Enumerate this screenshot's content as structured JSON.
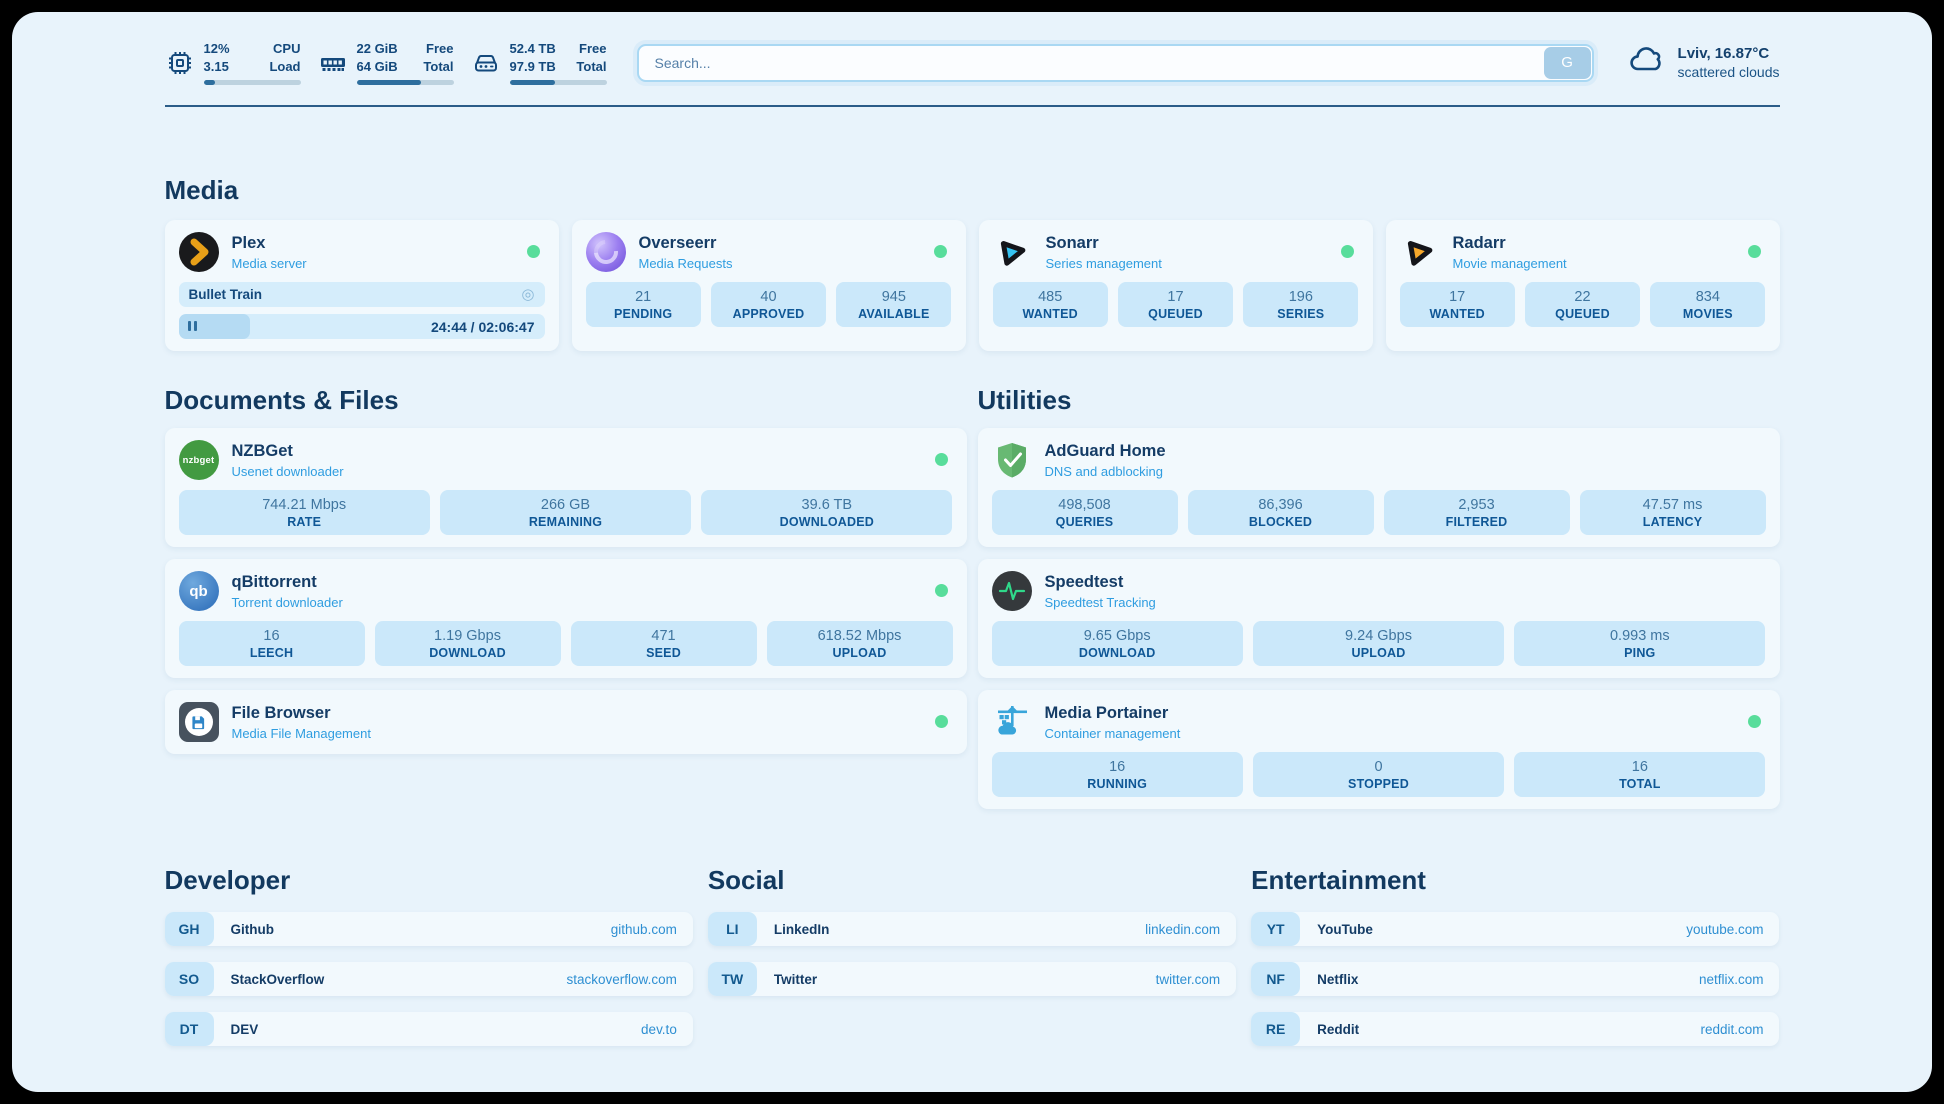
{
  "theme": {
    "accent": "#14497c",
    "online_dot": "#58dd9b",
    "link": "#2e8fd2",
    "card_bg": "#f2f9fd",
    "stat_box_bg": "#cbe8fa"
  },
  "header": {
    "stats": [
      {
        "icon": "cpu-chip-icon",
        "values": [
          "12%",
          "3.15"
        ],
        "labels": [
          "CPU",
          "Load"
        ],
        "progress": 12
      },
      {
        "icon": "ram-icon",
        "values": [
          "22 GiB",
          "64 GiB"
        ],
        "labels": [
          "Free",
          "Total"
        ],
        "progress": 66
      },
      {
        "icon": "disk-icon",
        "values": [
          "52.4 TB",
          "97.9 TB"
        ],
        "labels": [
          "Free",
          "Total"
        ],
        "progress": 47
      }
    ],
    "search": {
      "placeholder": "Search...",
      "button_label": "G"
    },
    "weather": {
      "icon": "cloud-icon",
      "location_temp": "Lviv, 16.87°C",
      "condition": "scattered clouds"
    }
  },
  "sections": {
    "media": {
      "title": "Media",
      "apps": {
        "plex": {
          "icon": "plex-icon",
          "name": "Plex",
          "subtitle": "Media server",
          "online": true,
          "now_playing": {
            "title": "Bullet Train",
            "time": "24:44 / 02:06:47",
            "progress_pct": 19.5
          }
        },
        "overseerr": {
          "icon": "overseerr-icon",
          "name": "Overseerr",
          "subtitle": "Media Requests",
          "online": true,
          "stats": [
            {
              "value": "21",
              "label": "PENDING"
            },
            {
              "value": "40",
              "label": "APPROVED"
            },
            {
              "value": "945",
              "label": "AVAILABLE"
            }
          ]
        },
        "sonarr": {
          "icon": "sonarr-icon",
          "name": "Sonarr",
          "subtitle": "Series management",
          "online": true,
          "stats": [
            {
              "value": "485",
              "label": "WANTED"
            },
            {
              "value": "17",
              "label": "QUEUED"
            },
            {
              "value": "196",
              "label": "SERIES"
            }
          ]
        },
        "radarr": {
          "icon": "radarr-icon",
          "name": "Radarr",
          "subtitle": "Movie management",
          "online": true,
          "stats": [
            {
              "value": "17",
              "label": "WANTED"
            },
            {
              "value": "22",
              "label": "QUEUED"
            },
            {
              "value": "834",
              "label": "MOVIES"
            }
          ]
        }
      }
    },
    "documents": {
      "title": "Documents & Files",
      "apps": {
        "nzbget": {
          "icon": "nzbget-icon",
          "name": "NZBGet",
          "subtitle": "Usenet downloader",
          "online": true,
          "stats": [
            {
              "value": "744.21 Mbps",
              "label": "RATE"
            },
            {
              "value": "266 GB",
              "label": "REMAINING"
            },
            {
              "value": "39.6 TB",
              "label": "DOWNLOADED"
            }
          ]
        },
        "qbittorrent": {
          "icon": "qbittorrent-icon",
          "name": "qBittorrent",
          "subtitle": "Torrent downloader",
          "online": true,
          "stats": [
            {
              "value": "16",
              "label": "LEECH"
            },
            {
              "value": "1.19 Gbps",
              "label": "DOWNLOAD"
            },
            {
              "value": "471",
              "label": "SEED"
            },
            {
              "value": "618.52 Mbps",
              "label": "UPLOAD"
            }
          ]
        },
        "filebrowser": {
          "icon": "filebrowser-icon",
          "name": "File Browser",
          "subtitle": "Media File Management",
          "online": true
        }
      }
    },
    "utilities": {
      "title": "Utilities",
      "apps": {
        "adguard": {
          "icon": "adguard-icon",
          "name": "AdGuard Home",
          "subtitle": "DNS and adblocking",
          "online": false,
          "stats": [
            {
              "value": "498,508",
              "label": "QUERIES"
            },
            {
              "value": "86,396",
              "label": "BLOCKED"
            },
            {
              "value": "2,953",
              "label": "FILTERED"
            },
            {
              "value": "47.57 ms",
              "label": "LATENCY"
            }
          ]
        },
        "speedtest": {
          "icon": "speedtest-icon",
          "name": "Speedtest",
          "subtitle": "Speedtest Tracking",
          "online": false,
          "stats": [
            {
              "value": "9.65 Gbps",
              "label": "DOWNLOAD"
            },
            {
              "value": "9.24 Gbps",
              "label": "UPLOAD"
            },
            {
              "value": "0.993 ms",
              "label": "PING"
            }
          ]
        },
        "portainer": {
          "icon": "portainer-icon",
          "name": "Media Portainer",
          "subtitle": "Container management",
          "online": true,
          "stats": [
            {
              "value": "16",
              "label": "RUNNING"
            },
            {
              "value": "0",
              "label": "STOPPED"
            },
            {
              "value": "16",
              "label": "TOTAL"
            }
          ]
        }
      }
    },
    "developer": {
      "title": "Developer",
      "links": [
        {
          "abbr": "GH",
          "name": "Github",
          "url": "github.com"
        },
        {
          "abbr": "SO",
          "name": "StackOverflow",
          "url": "stackoverflow.com"
        },
        {
          "abbr": "DT",
          "name": "DEV",
          "url": "dev.to"
        }
      ]
    },
    "social": {
      "title": "Social",
      "links": [
        {
          "abbr": "LI",
          "name": "LinkedIn",
          "url": "linkedin.com"
        },
        {
          "abbr": "TW",
          "name": "Twitter",
          "url": "twitter.com"
        }
      ]
    },
    "entertainment": {
      "title": "Entertainment",
      "links": [
        {
          "abbr": "YT",
          "name": "YouTube",
          "url": "youtube.com"
        },
        {
          "abbr": "NF",
          "name": "Netflix",
          "url": "netflix.com"
        },
        {
          "abbr": "RE",
          "name": "Reddit",
          "url": "reddit.com"
        }
      ]
    }
  }
}
